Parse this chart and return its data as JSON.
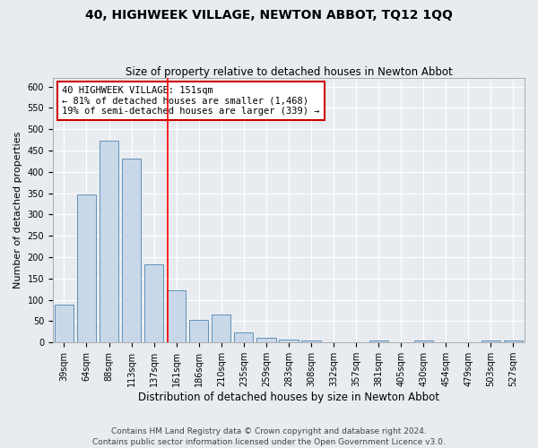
{
  "title": "40, HIGHWEEK VILLAGE, NEWTON ABBOT, TQ12 1QQ",
  "subtitle": "Size of property relative to detached houses in Newton Abbot",
  "xlabel": "Distribution of detached houses by size in Newton Abbot",
  "ylabel": "Number of detached properties",
  "categories": [
    "39sqm",
    "64sqm",
    "88sqm",
    "113sqm",
    "137sqm",
    "161sqm",
    "186sqm",
    "210sqm",
    "235sqm",
    "259sqm",
    "283sqm",
    "308sqm",
    "332sqm",
    "357sqm",
    "381sqm",
    "405sqm",
    "430sqm",
    "454sqm",
    "479sqm",
    "503sqm",
    "527sqm"
  ],
  "values": [
    88,
    348,
    472,
    430,
    183,
    122,
    53,
    65,
    23,
    12,
    6,
    5,
    0,
    0,
    5,
    0,
    5,
    0,
    0,
    4,
    4
  ],
  "bar_color": "#c8d8e8",
  "bar_edge_color": "#6090b8",
  "background_color": "#e8ecf0",
  "grid_color": "#ffffff",
  "annotation_line1": "40 HIGHWEEK VILLAGE: 151sqm",
  "annotation_line2": "← 81% of detached houses are smaller (1,468)",
  "annotation_line3": "19% of semi-detached houses are larger (339) →",
  "annotation_box_color": "#ffffff",
  "annotation_box_edge_color": "#cc0000",
  "red_line_x": 4.595,
  "ylim": [
    0,
    620
  ],
  "yticks": [
    0,
    50,
    100,
    150,
    200,
    250,
    300,
    350,
    400,
    450,
    500,
    550,
    600
  ],
  "footnote": "Contains HM Land Registry data © Crown copyright and database right 2024.\nContains public sector information licensed under the Open Government Licence v3.0.",
  "title_fontsize": 10,
  "subtitle_fontsize": 8.5,
  "xlabel_fontsize": 8.5,
  "ylabel_fontsize": 8,
  "tick_fontsize": 7,
  "annotation_fontsize": 7.5,
  "footnote_fontsize": 6.5
}
